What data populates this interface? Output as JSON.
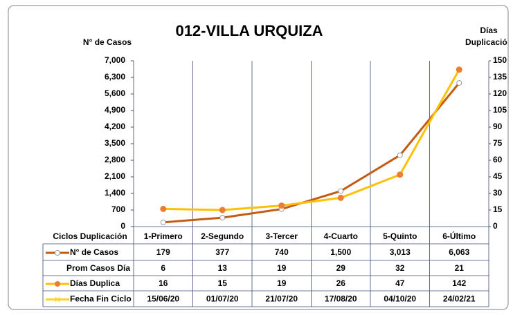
{
  "chart_data": {
    "type": "line",
    "title": "012-VILLA URQUIZA",
    "y_label": "N° de Casos",
    "y2_label": [
      "Días",
      "Duplicació"
    ],
    "table_header": "Ciclos Duplicación",
    "categories": [
      "1-Primero",
      "2-Segundo",
      "3-Tercer",
      "4-Cuarto",
      "5-Quinto",
      "6-Último"
    ],
    "ylim": [
      0,
      7000
    ],
    "yticks": [
      0,
      700,
      {
        "value": 1400,
        "label": "1,400"
      },
      {
        "value": 2100,
        "label": "2,100"
      },
      {
        "value": 2800,
        "label": "2,800"
      },
      {
        "value": 3500,
        "label": "3,500"
      },
      {
        "value": 4200,
        "label": "4,200"
      },
      {
        "value": 4900,
        "label": "4,900"
      },
      {
        "value": 5600,
        "label": "5,600"
      },
      {
        "value": 6300,
        "label": "6,300"
      },
      {
        "value": 7000,
        "label": "7,000"
      }
    ],
    "y2lim": [
      0,
      150
    ],
    "y2ticks": [
      0,
      15,
      30,
      45,
      60,
      75,
      90,
      105,
      120,
      135,
      150
    ],
    "series": [
      {
        "name": "N° de Casos",
        "color": "#c55a11",
        "values": [
          179,
          377,
          740,
          1500,
          3013,
          6063
        ],
        "value_labels": [
          "179",
          "377",
          "740",
          "1,500",
          "3,013",
          "6,063"
        ]
      },
      {
        "name": "Prom Casos Día",
        "values": [
          6,
          13,
          19,
          29,
          32,
          21
        ]
      },
      {
        "name": "Días Duplica",
        "color": "#ffc000",
        "marker_color": "#ed7d31",
        "axis": "y2",
        "values": [
          16,
          15,
          19,
          26,
          47,
          142
        ]
      },
      {
        "name": "Fecha Fin Ciclo",
        "color": "#ffd320",
        "values": [
          "15/06/20",
          "01/07/20",
          "21/07/20",
          "17/08/20",
          "04/10/20",
          "24/02/21"
        ]
      }
    ]
  }
}
